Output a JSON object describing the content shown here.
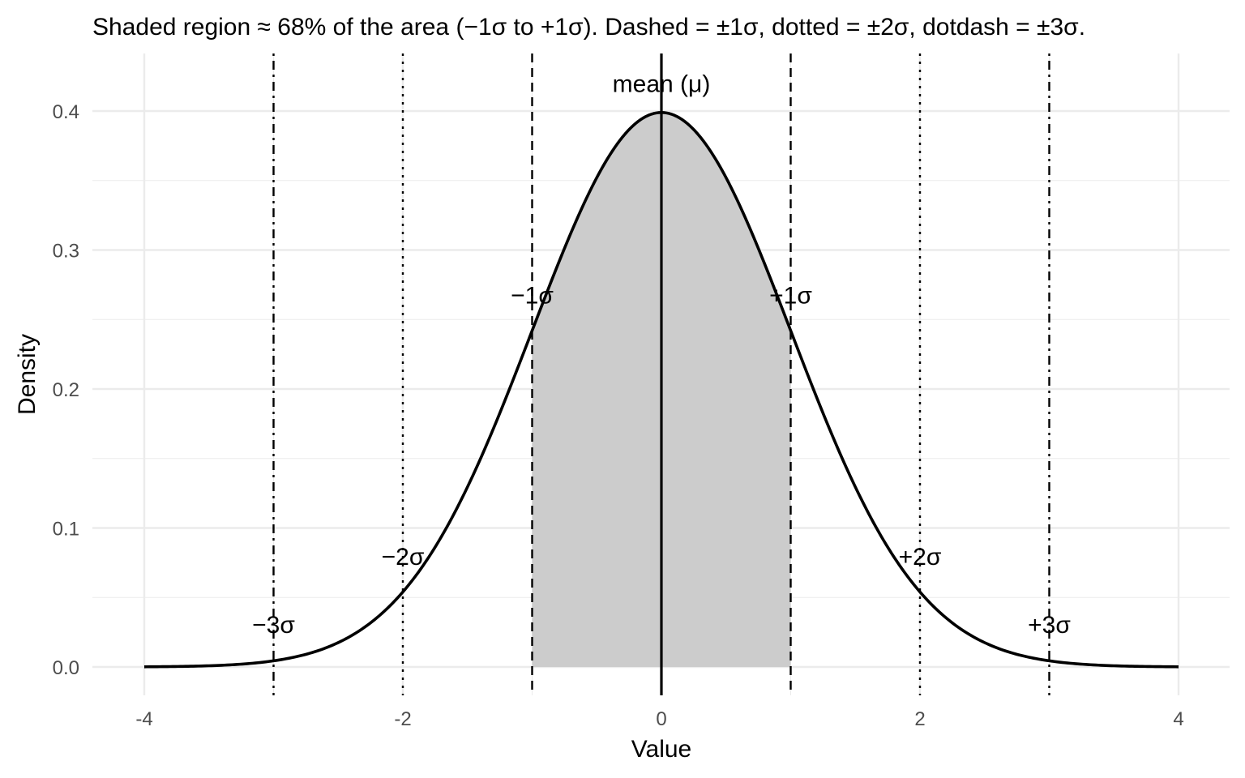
{
  "chart_data": {
    "type": "line",
    "title": "Shaded region ≈ 68% of the area (−1σ to +1σ). Dashed = ±1σ, dotted = ±2σ, dotdash = ±3σ.",
    "xlabel": "Value",
    "ylabel": "Density",
    "xlim": [
      -4,
      4
    ],
    "ylim": [
      0,
      0.4
    ],
    "x_ticks": [
      -4,
      -2,
      0,
      2,
      4
    ],
    "x_tick_labels": [
      "-4",
      "-2",
      "0",
      "2",
      "4"
    ],
    "y_ticks": [
      0.0,
      0.1,
      0.2,
      0.3,
      0.4
    ],
    "y_tick_labels": [
      "0.0",
      "0.1",
      "0.2",
      "0.3",
      "0.4"
    ],
    "grid": true,
    "curve": {
      "distribution": "standard normal density",
      "mean": 0,
      "sd": 1,
      "x_range": [
        -4,
        4
      ],
      "color": "#000000"
    },
    "shaded_region": {
      "x_from": -1,
      "x_to": 1,
      "color": "#cccccc"
    },
    "vertical_lines": [
      {
        "x": 0,
        "style": "solid",
        "label": "mean (μ)",
        "label_y": 0.42
      },
      {
        "x": -1,
        "style": "dashed",
        "label": "−1σ",
        "label_y": 0.268
      },
      {
        "x": 1,
        "style": "dashed",
        "label": "+1σ",
        "label_y": 0.268
      },
      {
        "x": -2,
        "style": "dotted",
        "label": "−2σ",
        "label_y": 0.08
      },
      {
        "x": 2,
        "style": "dotted",
        "label": "+2σ",
        "label_y": 0.08
      },
      {
        "x": -3,
        "style": "dotdash",
        "label": "−3σ",
        "label_y": 0.031
      },
      {
        "x": 3,
        "style": "dotdash",
        "label": "+3σ",
        "label_y": 0.031
      }
    ],
    "colors": {
      "line": "#000000",
      "grid": "#ebebeb",
      "shade": "#cccccc",
      "tick_text": "#4d4d4d"
    }
  }
}
